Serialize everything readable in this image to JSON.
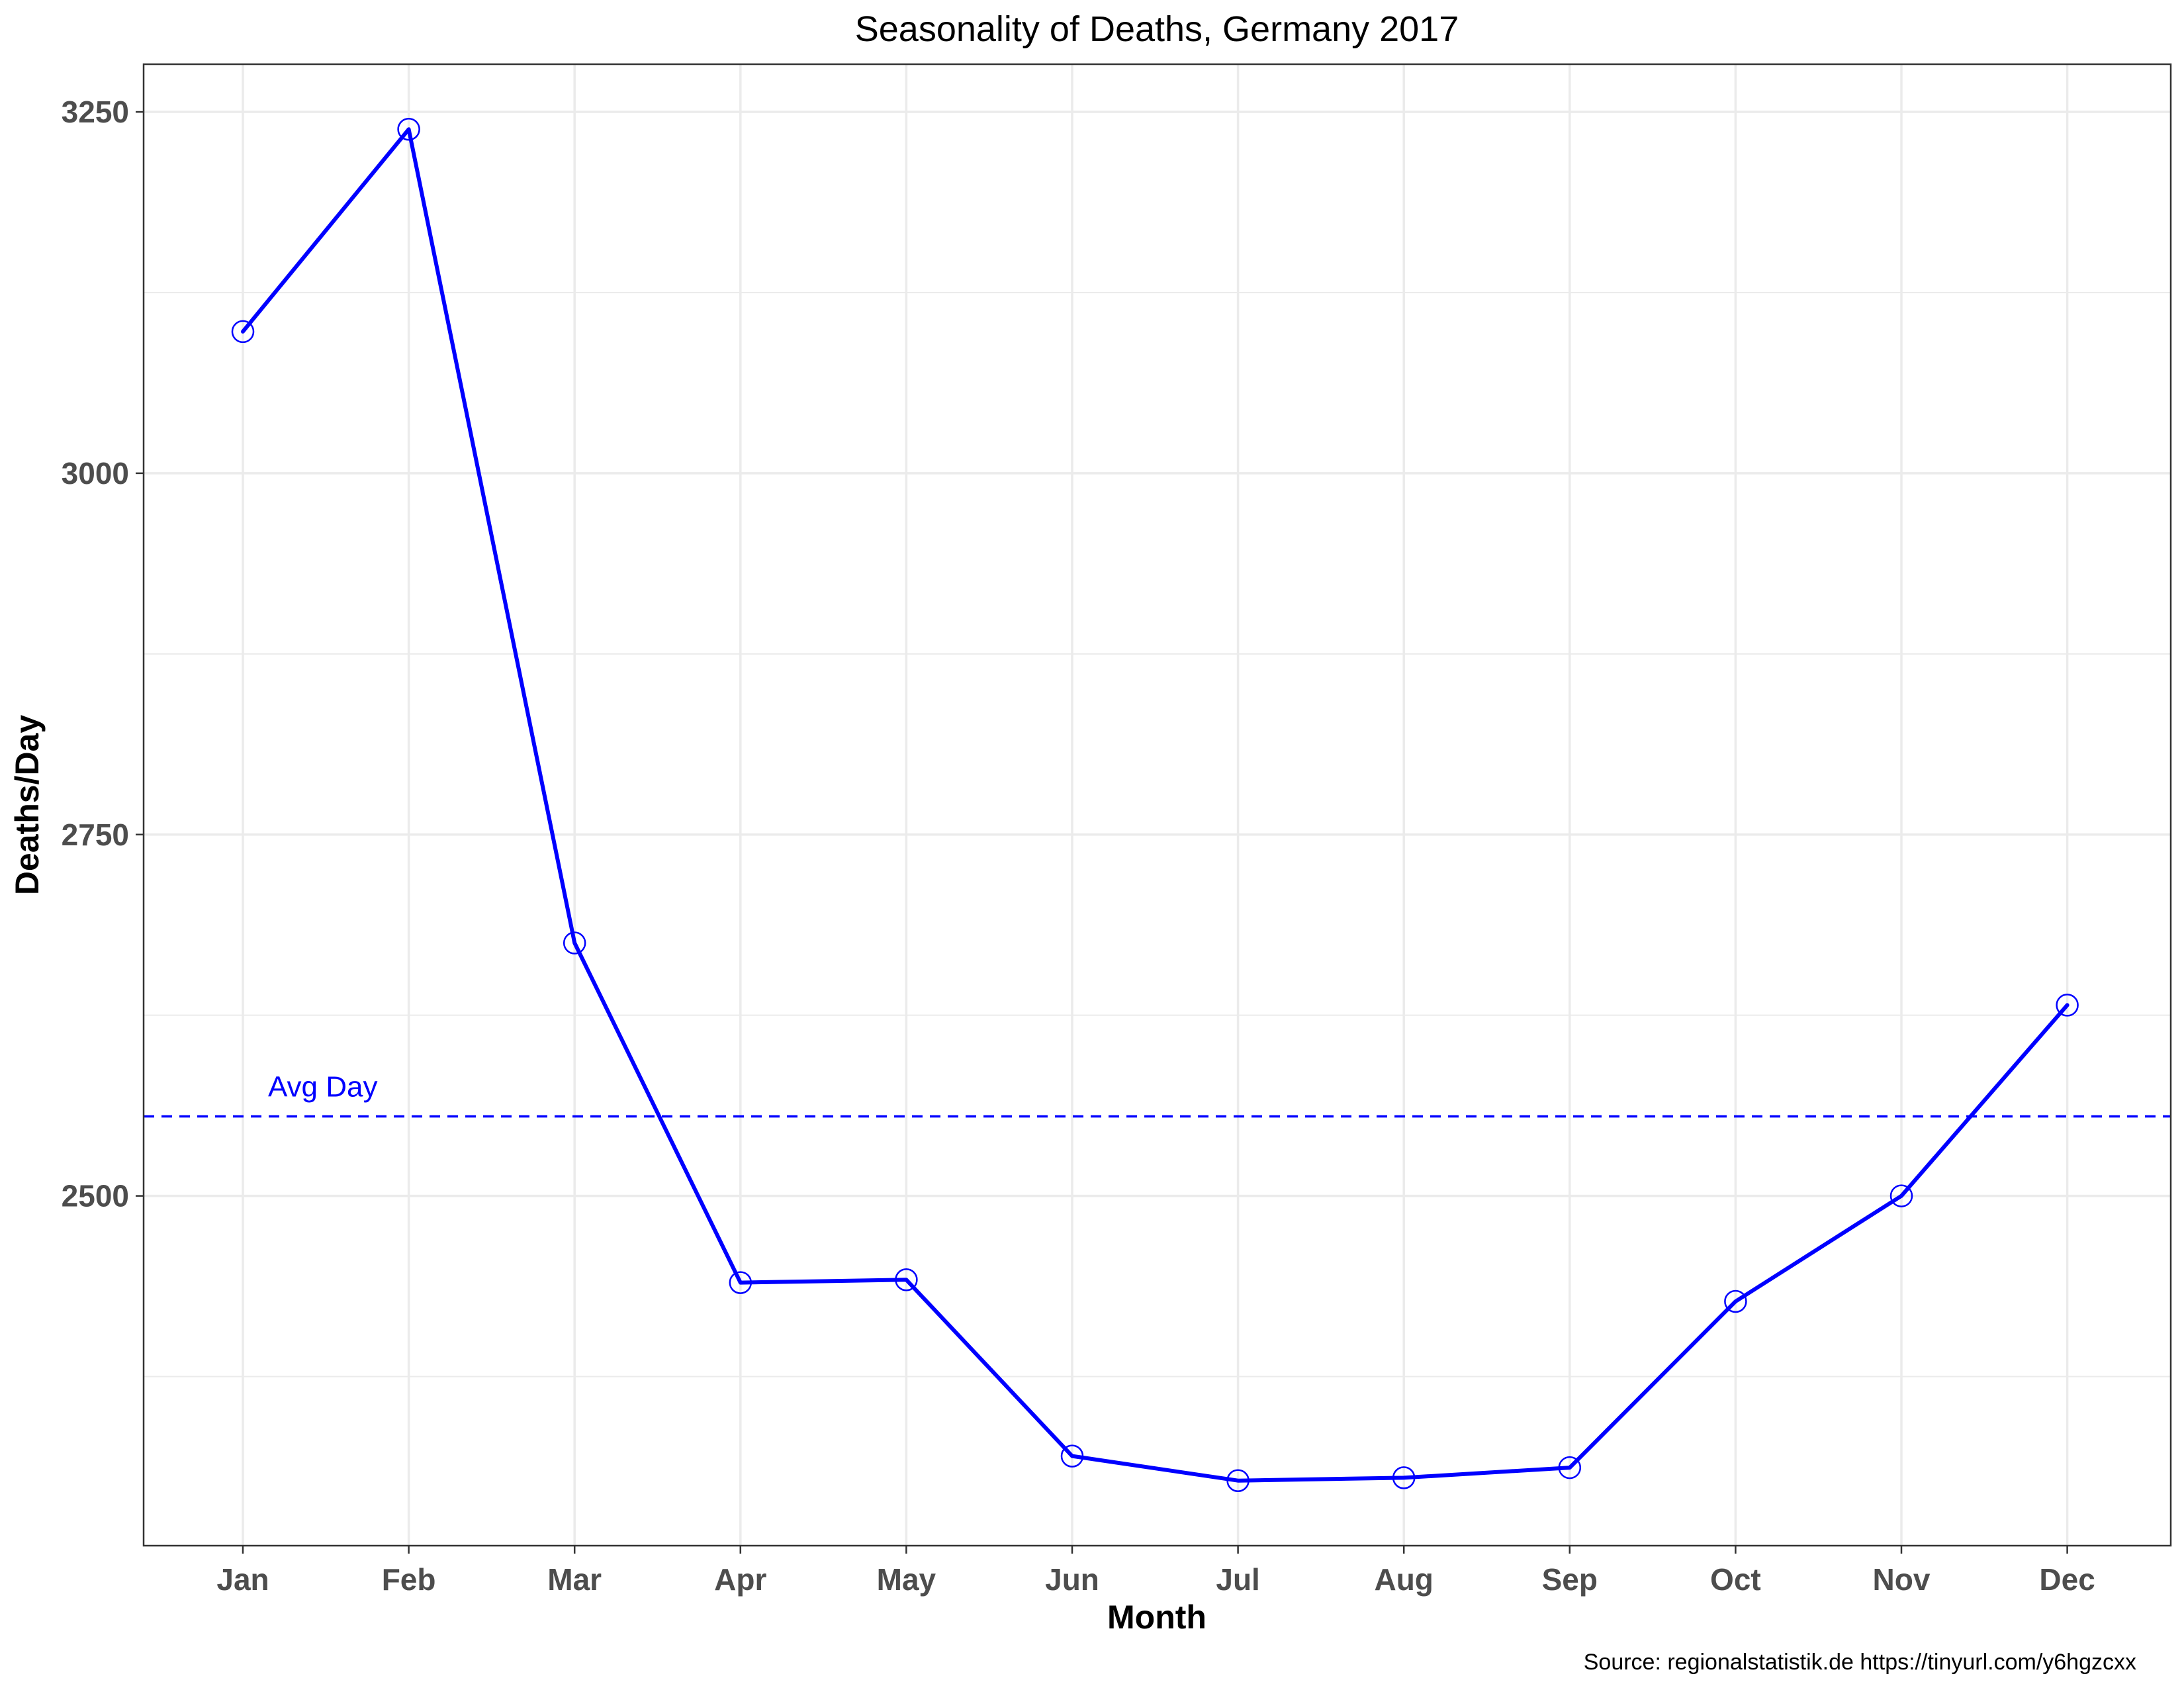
{
  "chart_data": {
    "type": "line",
    "title": "Seasonality of Deaths, Germany 2017",
    "xlabel": "Month",
    "ylabel": "Deaths/Day",
    "categories": [
      "Jan",
      "Feb",
      "Mar",
      "Apr",
      "May",
      "Jun",
      "Jul",
      "Aug",
      "Sep",
      "Oct",
      "Nov",
      "Dec"
    ],
    "series": [
      {
        "values": [
          3098,
          3238,
          2675,
          2440,
          2442,
          2320,
          2303,
          2305,
          2312,
          2427,
          2500,
          2632
        ]
      }
    ],
    "y_ticks": [
      2500,
      2750,
      3000,
      3250
    ],
    "ylim": [
      2258,
      3283
    ],
    "grid": true,
    "reference_line": {
      "value": 2555,
      "label": "Avg Day",
      "style": "dashed"
    },
    "caption": "Source: regionalstatistik.de https://tinyurl.com/y6hgzcxx",
    "colors": {
      "series": "#0000ff",
      "grid": "#ebebeb",
      "panel_border": "#333333"
    }
  }
}
